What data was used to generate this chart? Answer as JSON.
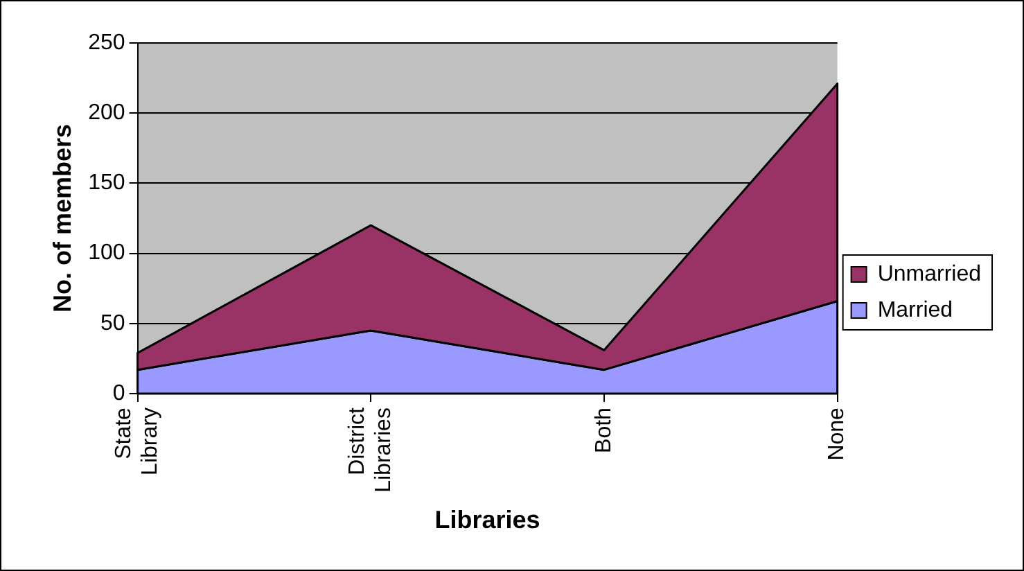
{
  "chart_data": {
    "type": "area",
    "stacked": true,
    "xlabel": "Libraries",
    "ylabel": "No. of members",
    "categories": [
      "State Library",
      "District Libraries",
      "Both",
      "None"
    ],
    "series": [
      {
        "name": "Married",
        "color": "#9999ff",
        "values": [
          17,
          45,
          17,
          66
        ]
      },
      {
        "name": "Unmarried",
        "color": "#993366",
        "values": [
          12,
          75,
          14,
          155
        ]
      }
    ],
    "ylim": [
      0,
      250
    ],
    "yticks": [
      0,
      50,
      100,
      150,
      200,
      250
    ],
    "grid": "y",
    "legend": "right"
  }
}
